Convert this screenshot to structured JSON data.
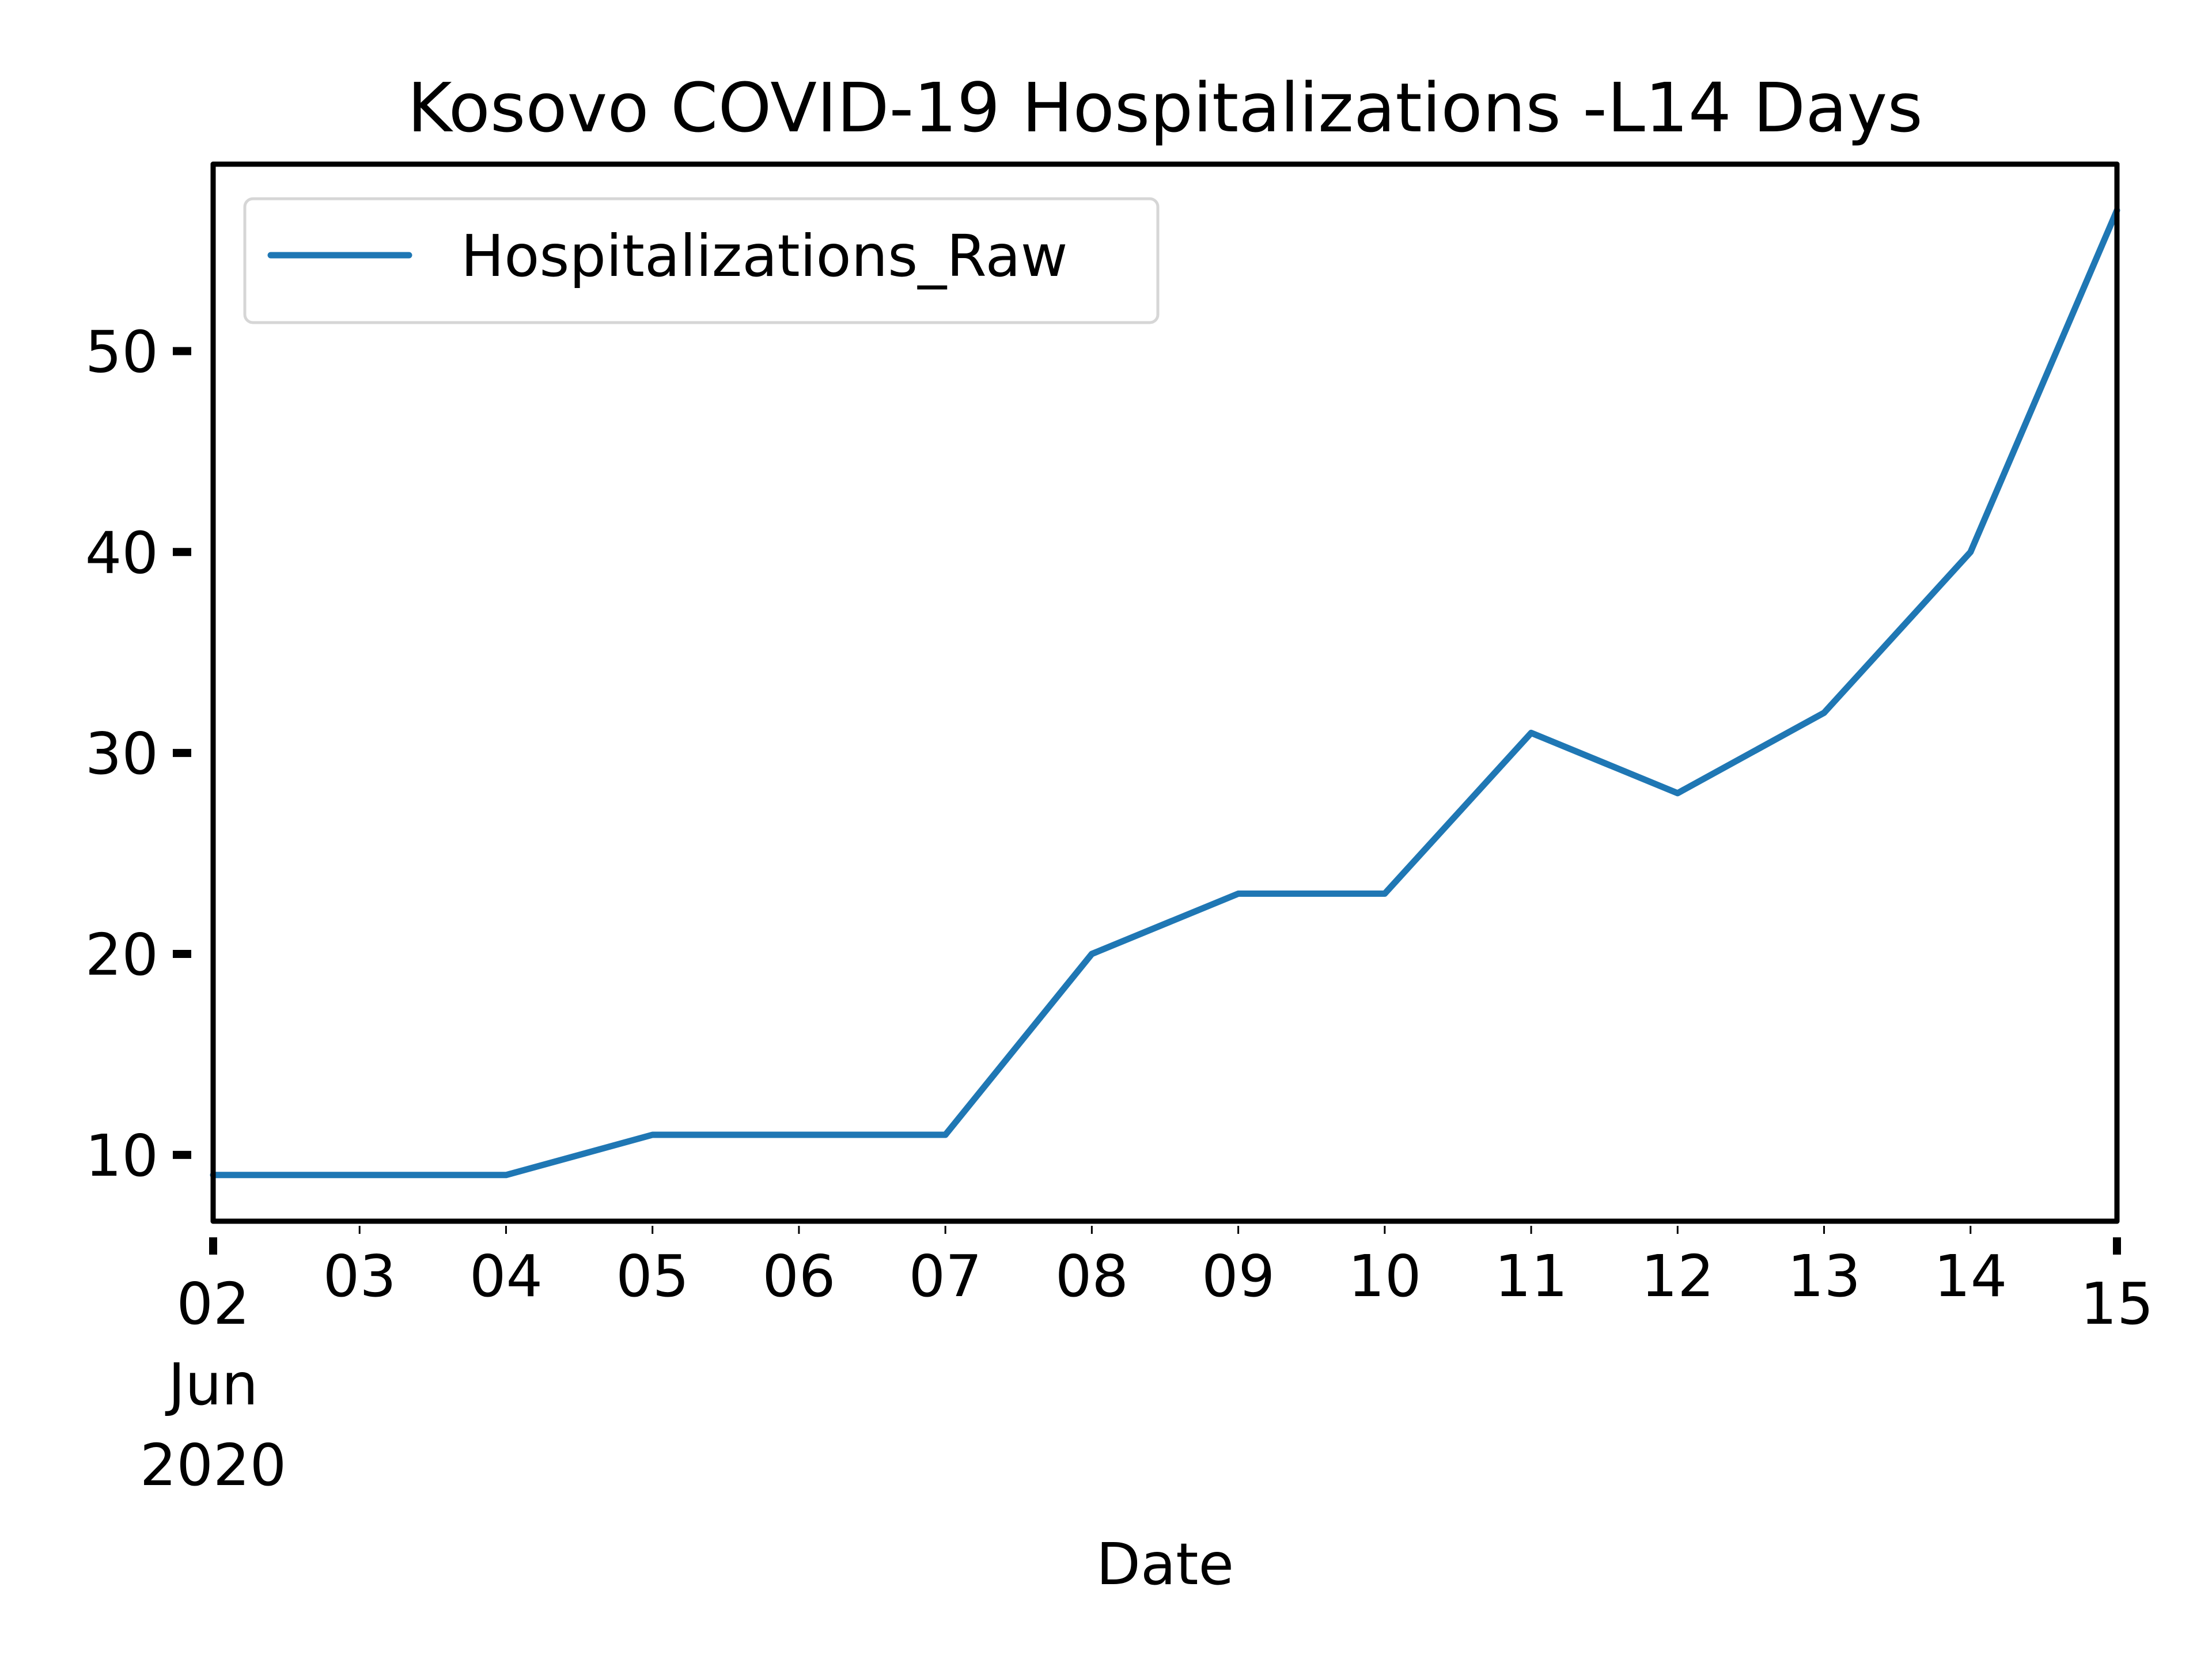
{
  "chart_data": {
    "type": "line",
    "title": "Kosovo COVID-19 Hospitalizations -L14 Days",
    "xlabel": "Date",
    "ylabel": "",
    "legend": {
      "position": "top-left",
      "entries": [
        "Hospitalizations_Raw"
      ]
    },
    "grid": false,
    "xlim": [
      "2020-06-02",
      "2020-06-15"
    ],
    "ylim": [
      6.7,
      59.3
    ],
    "x_ticks": [
      {
        "date": "2020-06-02",
        "label": "02",
        "sub": [
          "Jun",
          "2020"
        ],
        "major": true
      },
      {
        "date": "2020-06-03",
        "label": "03"
      },
      {
        "date": "2020-06-04",
        "label": "04"
      },
      {
        "date": "2020-06-05",
        "label": "05"
      },
      {
        "date": "2020-06-06",
        "label": "06"
      },
      {
        "date": "2020-06-07",
        "label": "07"
      },
      {
        "date": "2020-06-08",
        "label": "08"
      },
      {
        "date": "2020-06-09",
        "label": "09"
      },
      {
        "date": "2020-06-10",
        "label": "10"
      },
      {
        "date": "2020-06-11",
        "label": "11"
      },
      {
        "date": "2020-06-12",
        "label": "12"
      },
      {
        "date": "2020-06-13",
        "label": "13"
      },
      {
        "date": "2020-06-14",
        "label": "14"
      },
      {
        "date": "2020-06-15",
        "label": "15",
        "major": true
      }
    ],
    "y_ticks": [
      10,
      20,
      30,
      40,
      50
    ],
    "series": [
      {
        "name": "Hospitalizations_Raw",
        "color": "#1f77b4",
        "x": [
          "2020-06-02",
          "2020-06-03",
          "2020-06-04",
          "2020-06-05",
          "2020-06-06",
          "2020-06-07",
          "2020-06-08",
          "2020-06-09",
          "2020-06-10",
          "2020-06-11",
          "2020-06-12",
          "2020-06-13",
          "2020-06-14",
          "2020-06-15"
        ],
        "values": [
          9,
          9,
          9,
          11,
          11,
          11,
          20,
          23,
          23,
          31,
          28,
          32,
          40,
          57
        ]
      }
    ]
  }
}
